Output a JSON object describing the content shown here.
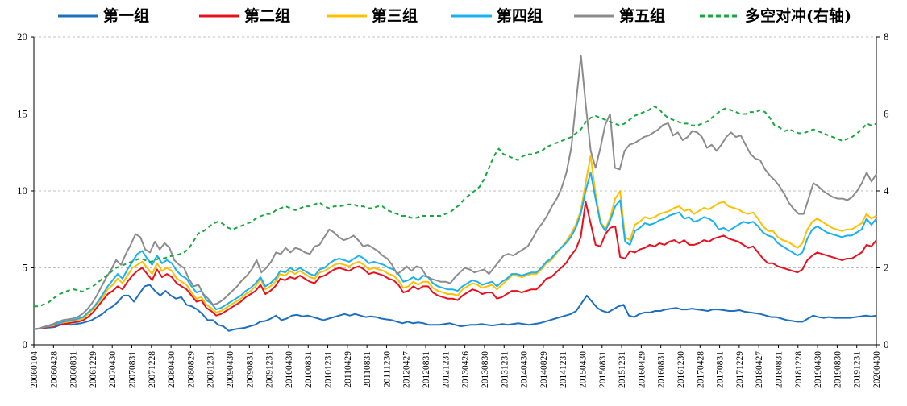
{
  "chart_data": {
    "type": "line",
    "title": "",
    "xlabel": "",
    "ylabel": "",
    "ylim_left": [
      0,
      20
    ],
    "ylim_right": [
      0,
      8
    ],
    "yticks_left": [
      0,
      5,
      10,
      15,
      20
    ],
    "yticks_right": [
      0,
      2,
      4,
      6,
      8
    ],
    "grid": true,
    "legend_position": "top",
    "x_tick_labels": [
      "20060104",
      "20060428",
      "20060831",
      "20061229",
      "20070430",
      "20070831",
      "20071228",
      "20080430",
      "20080829",
      "20081231",
      "20090430",
      "20090831",
      "20091231",
      "20100430",
      "20100831",
      "20101231",
      "20110429",
      "20110831",
      "20111230",
      "20120427",
      "20120831",
      "20121231",
      "20130426",
      "20130830",
      "20131231",
      "20140430",
      "20140829",
      "20141231",
      "20150430",
      "20150831",
      "20151231",
      "20160429",
      "20160831",
      "20161230",
      "20170428",
      "20170831",
      "20171229",
      "20180427",
      "20180831",
      "20181228",
      "20190430",
      "20190830",
      "20191231",
      "20200430"
    ],
    "series": [
      {
        "name": "第一组",
        "color": "#1f6fbf",
        "dash": false,
        "axis": "left",
        "values": [
          1.0,
          1.05,
          1.1,
          1.12,
          1.15,
          1.3,
          1.35,
          1.3,
          1.35,
          1.4,
          1.5,
          1.6,
          1.8,
          2.0,
          2.3,
          2.5,
          2.8,
          3.2,
          3.2,
          2.8,
          3.3,
          3.8,
          3.9,
          3.5,
          3.2,
          3.5,
          3.2,
          3.0,
          3.1,
          2.6,
          2.5,
          2.3,
          2.0,
          1.6,
          1.6,
          1.3,
          1.2,
          0.9,
          1.0,
          1.05,
          1.1,
          1.2,
          1.3,
          1.5,
          1.55,
          1.7,
          1.9,
          1.6,
          1.7,
          1.9,
          1.95,
          1.85,
          1.9,
          1.8,
          1.7,
          1.6,
          1.7,
          1.8,
          1.9,
          2.0,
          1.9,
          2.0,
          1.9,
          1.8,
          1.85,
          1.8,
          1.7,
          1.65,
          1.6,
          1.5,
          1.4,
          1.5,
          1.4,
          1.45,
          1.4,
          1.3,
          1.3,
          1.3,
          1.35,
          1.4,
          1.3,
          1.2,
          1.25,
          1.3,
          1.3,
          1.35,
          1.3,
          1.25,
          1.3,
          1.35,
          1.3,
          1.35,
          1.4,
          1.35,
          1.3,
          1.35,
          1.4,
          1.5,
          1.6,
          1.7,
          1.8,
          1.9,
          2.0,
          2.2,
          2.7,
          3.2,
          2.8,
          2.4,
          2.2,
          2.1,
          2.3,
          2.5,
          2.6,
          1.9,
          1.8,
          2.0,
          2.1,
          2.1,
          2.2,
          2.2,
          2.3,
          2.35,
          2.4,
          2.3,
          2.3,
          2.35,
          2.3,
          2.25,
          2.2,
          2.3,
          2.3,
          2.25,
          2.2,
          2.2,
          2.25,
          2.15,
          2.1,
          2.05,
          2.0,
          1.9,
          1.8,
          1.8,
          1.7,
          1.6,
          1.55,
          1.5,
          1.5,
          1.7,
          1.9,
          1.8,
          1.75,
          1.8,
          1.75,
          1.75,
          1.75,
          1.75,
          1.8,
          1.85,
          1.9,
          1.85,
          1.9
        ]
      },
      {
        "name": "第二组",
        "color": "#e8101e",
        "dash": false,
        "axis": "left",
        "values": [
          1.0,
          1.05,
          1.1,
          1.15,
          1.2,
          1.3,
          1.35,
          1.4,
          1.45,
          1.5,
          1.6,
          1.8,
          2.1,
          2.5,
          2.9,
          3.3,
          3.5,
          3.8,
          3.6,
          4.1,
          4.5,
          4.8,
          5.0,
          4.6,
          4.2,
          4.9,
          4.4,
          4.6,
          4.4,
          4.0,
          3.8,
          3.6,
          3.2,
          2.8,
          2.9,
          2.4,
          2.2,
          1.9,
          2.0,
          2.2,
          2.4,
          2.6,
          2.8,
          3.1,
          3.3,
          3.5,
          3.9,
          3.3,
          3.5,
          3.8,
          4.3,
          4.2,
          4.4,
          4.3,
          4.5,
          4.3,
          4.1,
          4.0,
          4.4,
          4.5,
          4.7,
          4.9,
          5.0,
          4.9,
          4.8,
          5.0,
          5.1,
          4.9,
          4.6,
          4.7,
          4.6,
          4.5,
          4.3,
          4.2,
          3.9,
          3.4,
          3.5,
          3.8,
          3.6,
          3.8,
          3.8,
          3.4,
          3.2,
          3.1,
          3.0,
          3.0,
          2.9,
          3.2,
          3.4,
          3.6,
          3.5,
          3.3,
          3.4,
          3.4,
          3.0,
          3.1,
          3.3,
          3.5,
          3.5,
          3.4,
          3.5,
          3.6,
          3.6,
          3.9,
          4.3,
          4.4,
          4.7,
          5.0,
          5.3,
          5.8,
          6.2,
          7.0,
          9.3,
          7.9,
          6.5,
          6.4,
          7.2,
          7.6,
          7.7,
          5.7,
          5.6,
          6.1,
          6.0,
          6.2,
          6.3,
          6.5,
          6.4,
          6.6,
          6.5,
          6.7,
          6.8,
          6.6,
          6.8,
          6.5,
          6.5,
          6.6,
          6.8,
          6.7,
          6.9,
          7.0,
          7.1,
          6.9,
          6.8,
          6.7,
          6.5,
          6.3,
          6.4,
          6.0,
          5.6,
          5.3,
          5.3,
          5.1,
          5.0,
          4.9,
          4.8,
          4.7,
          4.9,
          5.5,
          5.8,
          6.0,
          5.9,
          5.8,
          5.7,
          5.6,
          5.5,
          5.6,
          5.6,
          5.8,
          6.0,
          6.5,
          6.4,
          6.8
        ]
      },
      {
        "name": "第三组",
        "color": "#ffc000",
        "dash": false,
        "axis": "left",
        "values": [
          1.0,
          1.05,
          1.15,
          1.2,
          1.25,
          1.4,
          1.45,
          1.5,
          1.55,
          1.6,
          1.7,
          2.0,
          2.3,
          2.7,
          3.1,
          3.6,
          3.9,
          4.3,
          4.0,
          4.5,
          5.0,
          5.2,
          5.4,
          5.0,
          4.6,
          5.3,
          4.8,
          5.0,
          4.8,
          4.3,
          4.1,
          3.9,
          3.4,
          3.0,
          3.1,
          2.6,
          2.4,
          2.1,
          2.2,
          2.4,
          2.6,
          2.8,
          3.0,
          3.3,
          3.5,
          3.8,
          4.3,
          3.6,
          3.8,
          4.1,
          4.6,
          4.5,
          4.8,
          4.6,
          4.8,
          4.6,
          4.4,
          4.3,
          4.7,
          4.8,
          5.0,
          5.2,
          5.3,
          5.2,
          5.1,
          5.3,
          5.4,
          5.2,
          4.9,
          5.0,
          4.9,
          4.8,
          4.6,
          4.5,
          4.2,
          3.7,
          3.8,
          4.1,
          3.9,
          4.1,
          4.1,
          3.7,
          3.5,
          3.4,
          3.3,
          3.3,
          3.2,
          3.6,
          3.8,
          4.0,
          3.9,
          3.7,
          3.8,
          3.9,
          3.6,
          3.9,
          4.2,
          4.5,
          4.5,
          4.4,
          4.5,
          4.6,
          4.6,
          4.9,
          5.3,
          5.5,
          5.9,
          6.3,
          6.7,
          7.2,
          7.8,
          8.7,
          10.5,
          12.3,
          9.8,
          8.0,
          7.5,
          8.3,
          9.5,
          10.0,
          7.0,
          6.8,
          7.8,
          8.0,
          8.3,
          8.2,
          8.3,
          8.5,
          8.6,
          8.7,
          8.9,
          9.0,
          8.7,
          8.8,
          8.5,
          8.7,
          8.9,
          8.8,
          9.0,
          9.2,
          9.3,
          9.0,
          8.9,
          8.8,
          8.6,
          8.5,
          8.6,
          8.2,
          7.7,
          7.4,
          7.4,
          7.0,
          6.8,
          6.7,
          6.5,
          6.3,
          6.6,
          7.5,
          8.0,
          8.2,
          8.0,
          7.8,
          7.6,
          7.5,
          7.4,
          7.5,
          7.5,
          7.7,
          7.9,
          8.5,
          8.2,
          8.4
        ]
      },
      {
        "name": "第四组",
        "color": "#1ab1ee",
        "dash": false,
        "axis": "left",
        "values": [
          1.0,
          1.05,
          1.15,
          1.2,
          1.3,
          1.4,
          1.5,
          1.55,
          1.6,
          1.7,
          1.8,
          2.1,
          2.4,
          2.8,
          3.3,
          3.8,
          4.2,
          4.6,
          4.3,
          4.9,
          5.4,
          5.9,
          6.1,
          5.6,
          5.2,
          5.8,
          5.3,
          5.5,
          5.3,
          4.8,
          4.5,
          4.3,
          3.8,
          3.4,
          3.5,
          2.9,
          2.7,
          2.3,
          2.4,
          2.6,
          2.8,
          3.0,
          3.2,
          3.5,
          3.7,
          4.0,
          4.4,
          3.8,
          4.0,
          4.3,
          4.8,
          4.7,
          5.0,
          4.8,
          5.0,
          4.8,
          4.6,
          4.5,
          4.9,
          5.0,
          5.3,
          5.5,
          5.6,
          5.5,
          5.4,
          5.6,
          5.8,
          5.6,
          5.3,
          5.4,
          5.3,
          5.2,
          5.0,
          4.9,
          4.6,
          4.1,
          4.2,
          4.4,
          4.2,
          4.5,
          4.4,
          4.0,
          3.8,
          3.7,
          3.6,
          3.6,
          3.5,
          3.8,
          4.0,
          4.2,
          4.1,
          3.9,
          4.0,
          4.1,
          3.8,
          4.1,
          4.3,
          4.6,
          4.6,
          4.5,
          4.6,
          4.7,
          4.7,
          5.0,
          5.4,
          5.6,
          6.0,
          6.3,
          6.6,
          7.0,
          7.6,
          8.5,
          10.0,
          11.2,
          9.5,
          7.9,
          7.4,
          8.1,
          9.0,
          9.4,
          6.7,
          6.5,
          7.4,
          7.6,
          7.9,
          7.8,
          7.9,
          8.1,
          8.2,
          8.4,
          8.5,
          8.6,
          8.2,
          8.3,
          8.0,
          8.1,
          8.3,
          8.2,
          8.0,
          7.5,
          7.6,
          7.4,
          7.6,
          7.8,
          8.0,
          7.9,
          8.0,
          7.7,
          7.3,
          7.1,
          7.0,
          6.6,
          6.4,
          6.2,
          6.0,
          5.8,
          6.0,
          6.9,
          7.5,
          7.7,
          7.5,
          7.3,
          7.2,
          7.1,
          7.0,
          7.1,
          7.1,
          7.3,
          7.5,
          8.2,
          7.8,
          8.2
        ]
      },
      {
        "name": "第五组",
        "color": "#8c8c8c",
        "dash": false,
        "axis": "left",
        "values": [
          1.0,
          1.05,
          1.15,
          1.25,
          1.35,
          1.5,
          1.6,
          1.65,
          1.7,
          1.8,
          2.0,
          2.3,
          2.7,
          3.2,
          3.8,
          4.4,
          4.9,
          5.5,
          5.2,
          5.9,
          6.5,
          7.2,
          7.0,
          6.2,
          6.0,
          6.7,
          6.2,
          6.6,
          6.3,
          5.5,
          5.2,
          5.0,
          4.3,
          3.8,
          3.9,
          3.3,
          3.0,
          2.6,
          2.7,
          2.9,
          3.2,
          3.5,
          3.8,
          4.2,
          4.5,
          4.9,
          5.5,
          4.7,
          5.0,
          5.4,
          6.0,
          5.9,
          6.3,
          6.0,
          6.3,
          6.2,
          6.0,
          5.9,
          6.4,
          6.5,
          7.0,
          7.5,
          7.3,
          7.0,
          6.8,
          6.9,
          7.1,
          6.8,
          6.4,
          6.5,
          6.3,
          6.1,
          5.8,
          5.6,
          5.2,
          4.6,
          4.8,
          5.1,
          4.8,
          5.1,
          5.0,
          4.5,
          4.3,
          4.2,
          4.1,
          4.1,
          4.0,
          4.4,
          4.7,
          5.0,
          4.9,
          4.7,
          4.8,
          4.9,
          4.6,
          5.0,
          5.4,
          5.8,
          5.9,
          5.8,
          6.0,
          6.2,
          6.4,
          6.9,
          7.5,
          7.9,
          8.4,
          9.0,
          9.5,
          10.2,
          11.2,
          12.8,
          15.8,
          18.8,
          15.5,
          12.6,
          11.5,
          12.8,
          14.3,
          15.0,
          11.5,
          11.4,
          12.6,
          13.0,
          13.1,
          13.3,
          13.5,
          13.6,
          13.8,
          14.0,
          14.3,
          14.4,
          13.6,
          13.8,
          13.3,
          13.5,
          13.9,
          13.8,
          13.5,
          12.8,
          13.0,
          12.6,
          13.0,
          13.5,
          13.8,
          13.5,
          13.6,
          13.0,
          12.4,
          12.1,
          12.0,
          11.4,
          11.0,
          10.7,
          10.3,
          9.8,
          9.2,
          8.8,
          8.5,
          8.5,
          9.5,
          10.5,
          10.3,
          10.0,
          9.8,
          9.6,
          9.5,
          9.5,
          9.4,
          9.6,
          10.0,
          10.5,
          11.2,
          10.6,
          11.1
        ]
      },
      {
        "name": "多空对冲(右轴)",
        "color": "#17a840",
        "dash": true,
        "axis": "right",
        "values": [
          1.0,
          1.0,
          1.05,
          1.1,
          1.2,
          1.3,
          1.35,
          1.4,
          1.45,
          1.42,
          1.38,
          1.45,
          1.5,
          1.6,
          1.7,
          1.8,
          1.9,
          2.0,
          2.05,
          2.1,
          2.15,
          2.2,
          2.25,
          2.2,
          2.15,
          2.2,
          2.25,
          2.25,
          2.3,
          2.32,
          2.35,
          2.4,
          2.5,
          2.7,
          2.9,
          2.95,
          3.05,
          3.15,
          3.2,
          3.15,
          3.05,
          3.0,
          3.05,
          3.1,
          3.15,
          3.2,
          3.3,
          3.35,
          3.4,
          3.4,
          3.5,
          3.55,
          3.6,
          3.55,
          3.5,
          3.55,
          3.6,
          3.6,
          3.65,
          3.7,
          3.6,
          3.55,
          3.6,
          3.6,
          3.62,
          3.65,
          3.65,
          3.6,
          3.6,
          3.55,
          3.55,
          3.6,
          3.6,
          3.5,
          3.45,
          3.4,
          3.35,
          3.35,
          3.3,
          3.3,
          3.35,
          3.35,
          3.35,
          3.35,
          3.35,
          3.4,
          3.45,
          3.55,
          3.65,
          3.8,
          3.9,
          4.0,
          4.1,
          4.3,
          4.6,
          4.9,
          5.1,
          4.95,
          4.9,
          4.85,
          4.8,
          4.9,
          4.95,
          4.95,
          5.0,
          5.05,
          5.15,
          5.2,
          5.25,
          5.3,
          5.35,
          5.4,
          5.5,
          5.6,
          5.8,
          5.9,
          5.95,
          5.9,
          5.85,
          5.8,
          5.75,
          5.7,
          5.75,
          5.85,
          5.95,
          6.0,
          6.05,
          6.1,
          6.2,
          6.15,
          6.0,
          5.9,
          5.85,
          5.8,
          5.75,
          5.75,
          5.7,
          5.7,
          5.75,
          5.8,
          5.9,
          6.0,
          6.1,
          6.15,
          6.1,
          6.05,
          6.0,
          6.0,
          6.05,
          6.05,
          6.1,
          6.05,
          5.9,
          5.7,
          5.65,
          5.55,
          5.6,
          5.55,
          5.5,
          5.5,
          5.55,
          5.6,
          5.55,
          5.5,
          5.45,
          5.4,
          5.35,
          5.3,
          5.35,
          5.4,
          5.5,
          5.6,
          5.75,
          5.7,
          5.75
        ]
      }
    ]
  }
}
